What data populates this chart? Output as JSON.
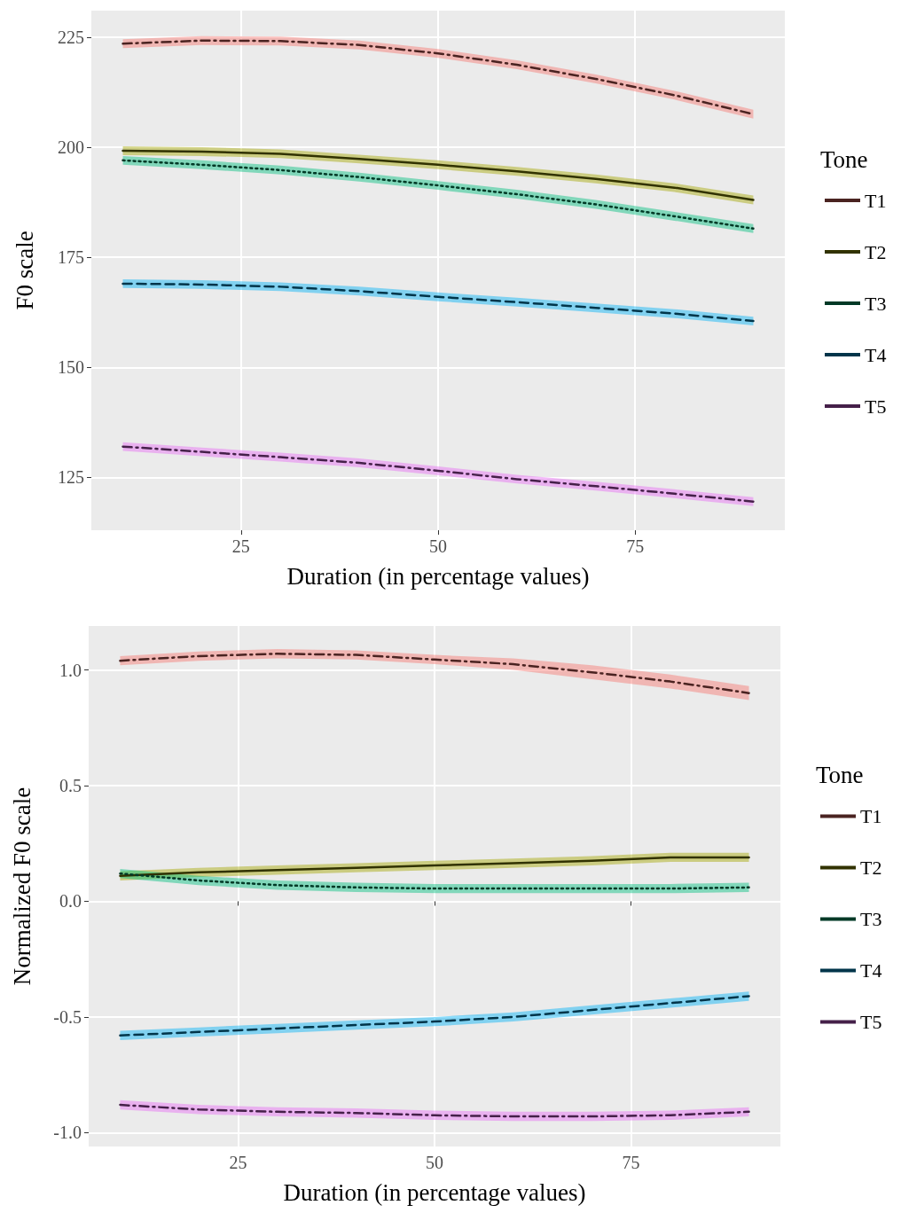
{
  "chart_data": [
    {
      "type": "line",
      "xlabel": "Duration (in percentage values)",
      "ylabel": "F0 scale",
      "legend_title": "Tone",
      "legend": "right",
      "grid": true,
      "x": [
        10,
        20,
        30,
        40,
        50,
        60,
        70,
        80,
        90
      ],
      "xlim": [
        6,
        94
      ],
      "xticks": [
        25,
        50,
        75
      ],
      "ylim": [
        113,
        231
      ],
      "yticks": [
        125,
        150,
        175,
        200,
        225
      ],
      "series": [
        {
          "name": "T1",
          "color": "#4a2321",
          "line_style": "dashdot",
          "values": [
            223.5,
            224.2,
            224.1,
            223.2,
            221.3,
            218.7,
            215.5,
            211.8,
            207.5
          ],
          "lower": [
            222.5,
            223.2,
            223.1,
            222.2,
            220.3,
            217.7,
            214.5,
            210.8,
            206.5
          ],
          "upper": [
            224.5,
            225.2,
            225.1,
            224.2,
            222.3,
            219.7,
            216.5,
            212.8,
            208.5
          ]
        },
        {
          "name": "T2",
          "color": "#313200",
          "line_style": "solid",
          "values": [
            199.2,
            199,
            198.5,
            197.3,
            196,
            194.5,
            192.8,
            190.8,
            188
          ],
          "lower": [
            198.2,
            198,
            197.5,
            196.3,
            195,
            193.5,
            191.8,
            189.8,
            187
          ],
          "upper": [
            200.2,
            200,
            199.5,
            198.3,
            197,
            195.5,
            193.8,
            191.8,
            189
          ]
        },
        {
          "name": "T3",
          "color": "#003926",
          "line_style": "dotted",
          "values": [
            197,
            196,
            194.8,
            193.2,
            191.3,
            189.3,
            187,
            184.3,
            181.5
          ],
          "lower": [
            196,
            195,
            193.8,
            192.2,
            190.3,
            188.3,
            186,
            183.3,
            180.5
          ],
          "upper": [
            198,
            197,
            195.8,
            194.2,
            192.3,
            190.3,
            188,
            185.3,
            182.5
          ]
        },
        {
          "name": "T4",
          "color": "#00354a",
          "line_style": "dashed",
          "values": [
            169,
            168.8,
            168.3,
            167.3,
            166,
            164.8,
            163.5,
            162.2,
            160.5
          ],
          "lower": [
            168,
            167.8,
            167.3,
            166.3,
            165,
            163.8,
            162.5,
            161.2,
            159.5
          ],
          "upper": [
            170,
            169.8,
            169.3,
            168.3,
            167,
            165.8,
            164.5,
            163.2,
            161.5
          ]
        },
        {
          "name": "T5",
          "color": "#452049",
          "line_style": "dashdot",
          "values": [
            132,
            130.8,
            129.6,
            128.3,
            126.5,
            124.6,
            123,
            121.3,
            119.5
          ],
          "lower": [
            131,
            129.8,
            128.6,
            127.3,
            125.5,
            123.6,
            122,
            120.3,
            118.5
          ],
          "upper": [
            133,
            131.8,
            130.6,
            129.3,
            127.5,
            125.6,
            124,
            122.3,
            120.5
          ]
        }
      ]
    },
    {
      "type": "line",
      "xlabel": "Duration (in percentage values)",
      "ylabel": "Normalized F0 scale",
      "legend_title": "Tone",
      "legend": "right",
      "grid": true,
      "x": [
        10,
        20,
        30,
        40,
        50,
        60,
        70,
        80,
        90
      ],
      "xlim": [
        6,
        94
      ],
      "xticks": [
        25,
        50,
        75
      ],
      "ylim": [
        -1.06,
        1.19
      ],
      "yticks": [
        {
          "value": -1,
          "label": "-1.0"
        },
        {
          "value": -0.5,
          "label": "-0.5"
        },
        {
          "value": 0,
          "label": "0.0"
        },
        {
          "value": 0.5,
          "label": "0.5"
        },
        {
          "value": 1,
          "label": "1.0"
        }
      ],
      "series": [
        {
          "name": "T1",
          "color": "#4a2321",
          "line_style": "dashdot",
          "values": [
            1.04,
            1.06,
            1.07,
            1.065,
            1.045,
            1.025,
            0.99,
            0.95,
            0.9
          ],
          "lower": [
            1.02,
            1.04,
            1.05,
            1.045,
            1.025,
            1.0,
            0.96,
            0.92,
            0.87
          ],
          "upper": [
            1.06,
            1.08,
            1.09,
            1.085,
            1.065,
            1.05,
            1.02,
            0.98,
            0.93
          ]
        },
        {
          "name": "T2",
          "color": "#313200",
          "line_style": "solid",
          "values": [
            0.11,
            0.125,
            0.135,
            0.145,
            0.155,
            0.165,
            0.175,
            0.19,
            0.19
          ],
          "lower": [
            0.09,
            0.105,
            0.115,
            0.125,
            0.135,
            0.145,
            0.155,
            0.17,
            0.17
          ],
          "upper": [
            0.13,
            0.145,
            0.155,
            0.165,
            0.175,
            0.185,
            0.195,
            0.21,
            0.21
          ]
        },
        {
          "name": "T3",
          "color": "#003926",
          "line_style": "dotted",
          "values": [
            0.12,
            0.09,
            0.07,
            0.06,
            0.055,
            0.055,
            0.055,
            0.055,
            0.06
          ],
          "lower": [
            0.1,
            0.07,
            0.05,
            0.04,
            0.035,
            0.035,
            0.035,
            0.035,
            0.04
          ],
          "upper": [
            0.14,
            0.11,
            0.09,
            0.08,
            0.075,
            0.075,
            0.075,
            0.075,
            0.08
          ]
        },
        {
          "name": "T4",
          "color": "#00354a",
          "line_style": "dashed",
          "values": [
            -0.58,
            -0.565,
            -0.55,
            -0.535,
            -0.52,
            -0.5,
            -0.47,
            -0.44,
            -0.41
          ],
          "lower": [
            -0.6,
            -0.585,
            -0.57,
            -0.555,
            -0.54,
            -0.52,
            -0.49,
            -0.46,
            -0.43
          ],
          "upper": [
            -0.56,
            -0.545,
            -0.53,
            -0.515,
            -0.5,
            -0.48,
            -0.45,
            -0.42,
            -0.39
          ]
        },
        {
          "name": "T5",
          "color": "#452049",
          "line_style": "dashdot",
          "values": [
            -0.88,
            -0.9,
            -0.91,
            -0.915,
            -0.925,
            -0.93,
            -0.93,
            -0.925,
            -0.91
          ],
          "lower": [
            -0.9,
            -0.92,
            -0.93,
            -0.935,
            -0.945,
            -0.95,
            -0.95,
            -0.945,
            -0.93
          ],
          "upper": [
            -0.86,
            -0.88,
            -0.89,
            -0.895,
            -0.905,
            -0.91,
            -0.91,
            -0.905,
            -0.89
          ]
        }
      ]
    }
  ]
}
